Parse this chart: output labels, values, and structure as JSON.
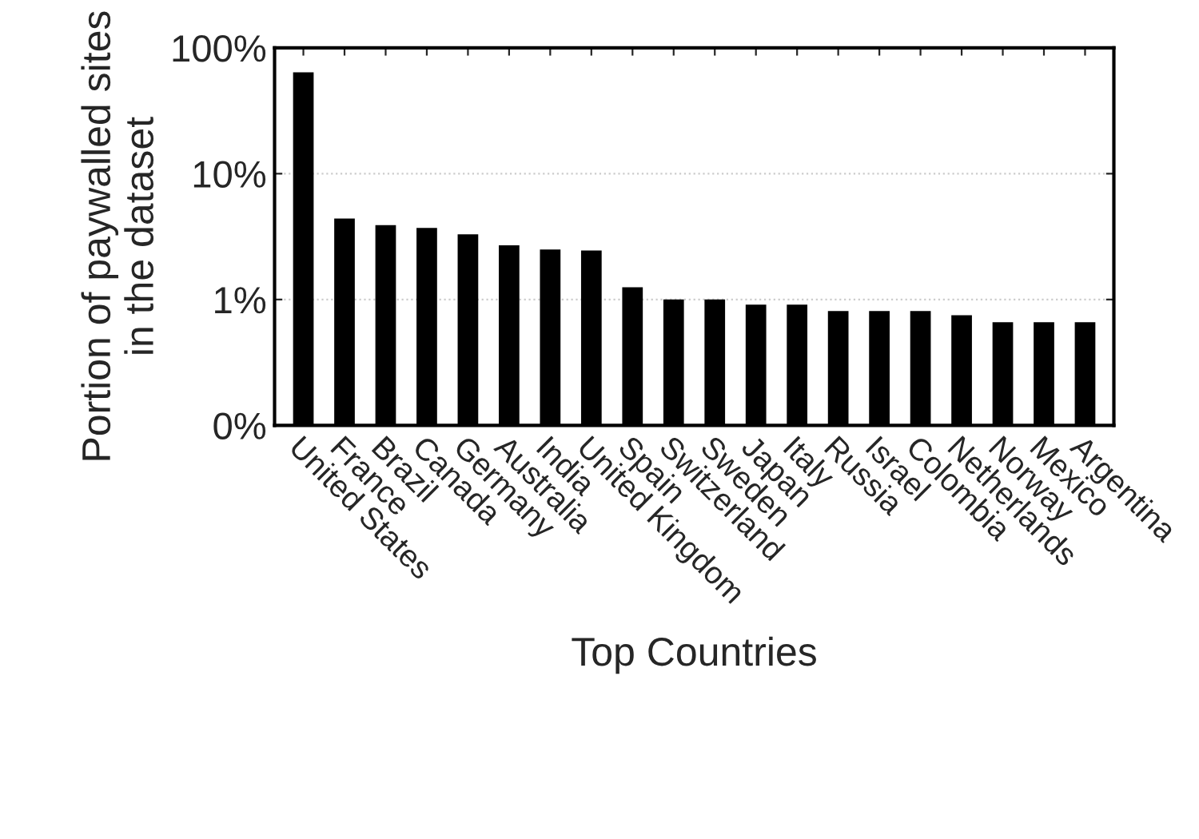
{
  "chart_data": {
    "type": "bar",
    "xlabel": "Top Countries",
    "ylabel": "Portion of paywalled sites\nin the dataset",
    "categories": [
      "United States",
      "France",
      "Brazil",
      "Canada",
      "Germany",
      "Australia",
      "India",
      "United Kingdom",
      "Spain",
      "Switzerland",
      "Sweden",
      "Japan",
      "Italy",
      "Russia",
      "Israel",
      "Colombia",
      "Netherlands",
      "Norway",
      "Mexico",
      "Argentina"
    ],
    "values": [
      64,
      4.4,
      3.9,
      3.7,
      3.3,
      2.7,
      2.5,
      2.45,
      1.25,
      1.0,
      1.0,
      0.91,
      0.91,
      0.81,
      0.81,
      0.81,
      0.75,
      0.66,
      0.66,
      0.66
    ],
    "color": "#000000",
    "log": true,
    "ylim": [
      0.1,
      100
    ],
    "yticks": [
      {
        "value": 0.1,
        "label": "0%"
      },
      {
        "value": 1,
        "label": "1%"
      },
      {
        "value": 10,
        "label": "10%"
      },
      {
        "value": 100,
        "label": "100%"
      }
    ],
    "grid": "y"
  }
}
